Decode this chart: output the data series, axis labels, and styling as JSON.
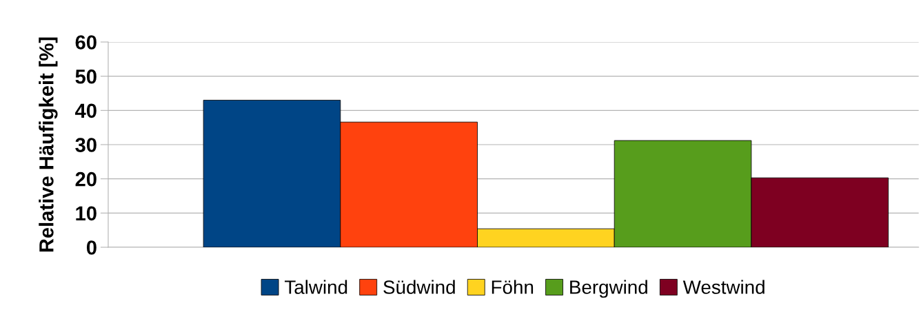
{
  "chart_data": {
    "type": "bar",
    "ylabel": "Relative Häufigkeit [%]",
    "categories": [
      null
    ],
    "series": [
      {
        "name": "Talwind",
        "color": "#004586",
        "values": [
          43.0
        ]
      },
      {
        "name": "Südwind",
        "color": "#ff420e",
        "values": [
          36.6
        ]
      },
      {
        "name": "Föhn",
        "color": "#ffd320",
        "values": [
          5.4
        ]
      },
      {
        "name": "Bergwind",
        "color": "#579d1c",
        "values": [
          31.2
        ]
      },
      {
        "name": "Westwind",
        "color": "#7e0021",
        "values": [
          20.3
        ]
      }
    ],
    "ylim": [
      0,
      60
    ],
    "yticks": [
      0,
      10,
      20,
      30,
      40,
      50,
      60
    ],
    "grid": "y",
    "legend": "bottom"
  }
}
